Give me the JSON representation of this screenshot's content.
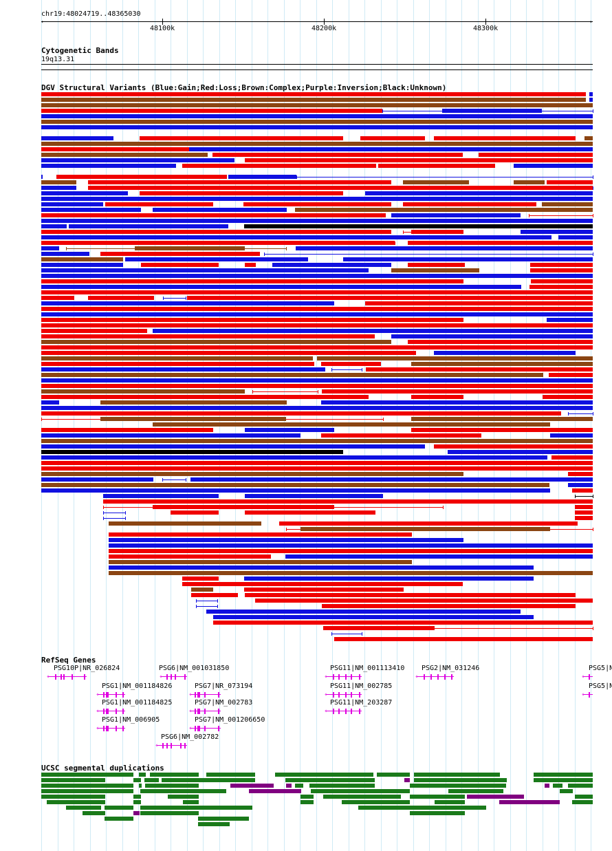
{
  "ruler": {
    "position": "chr19:48024719..48365030",
    "ticks": [
      "48100k",
      "48200k",
      "48300k"
    ]
  },
  "tracks": {
    "cytoband": {
      "title": "Cytogenetic Bands",
      "band": "19q13.31"
    },
    "dgv": {
      "title": "DGV Structural Variants (Blue:Gain;Red:Loss;Brown:Complex;Purple:Inversion;Black:Unknown)",
      "legend_colors": {
        "gain": "#1010e0",
        "loss": "#f00000",
        "complex": "#8b4513",
        "inversion": "#800080",
        "unknown": "#000000"
      }
    },
    "refseq": {
      "title": "RefSeq Genes",
      "color": "#e000e0",
      "genes": [
        "PSG10P|NR_026824",
        "PSG6|NM_001031850",
        "PSG11|NM_001113410",
        "PSG2|NM_031246",
        "PSG5|N",
        "PSG1|NM_001184826",
        "PSG7|NR_073194",
        "PSG11|NM_002785",
        "PSG5|N",
        "PSG1|NM_001184825",
        "PSG7|NM_002783",
        "PSG11|NM_203287",
        "PSG1|NM_006905",
        "PSG7|NM_001206650",
        "PSG6|NM_002782"
      ]
    },
    "segdup": {
      "title": "UCSC segmental duplications",
      "colors": {
        "green": "#1a7a1a",
        "purple": "#800080"
      }
    }
  }
}
